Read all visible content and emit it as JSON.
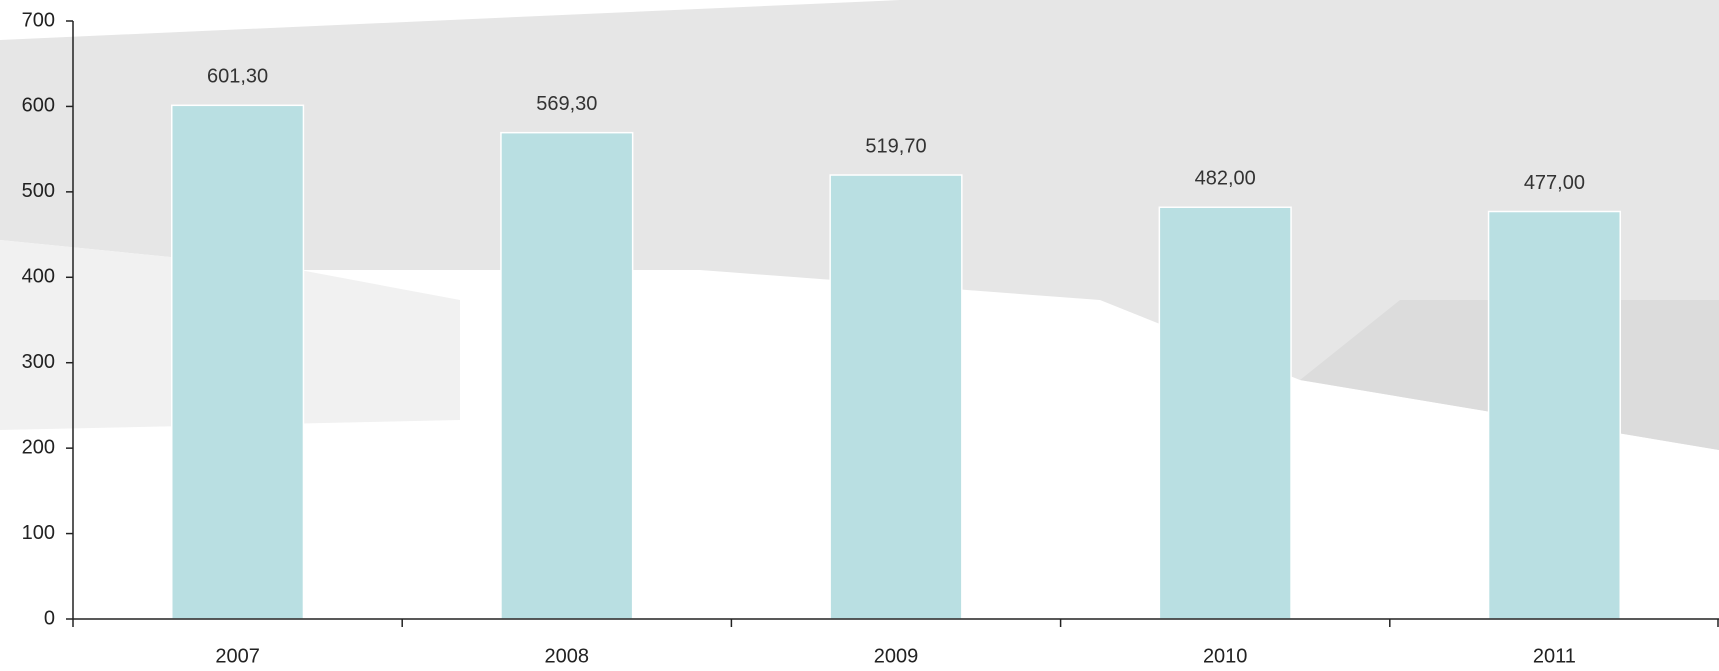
{
  "chart_data": {
    "type": "bar",
    "categories": [
      "2007",
      "2008",
      "2009",
      "2010",
      "2011"
    ],
    "values": [
      601.3,
      569.3,
      519.7,
      482.0,
      477.0
    ],
    "value_labels": [
      "601,30",
      "569,30",
      "519,70",
      "482,00",
      "477,00"
    ],
    "color": "#b9dfe2",
    "ylim": [
      0,
      700
    ],
    "yticks": [
      0,
      100,
      200,
      300,
      400,
      500,
      600,
      700
    ],
    "grid": false
  }
}
